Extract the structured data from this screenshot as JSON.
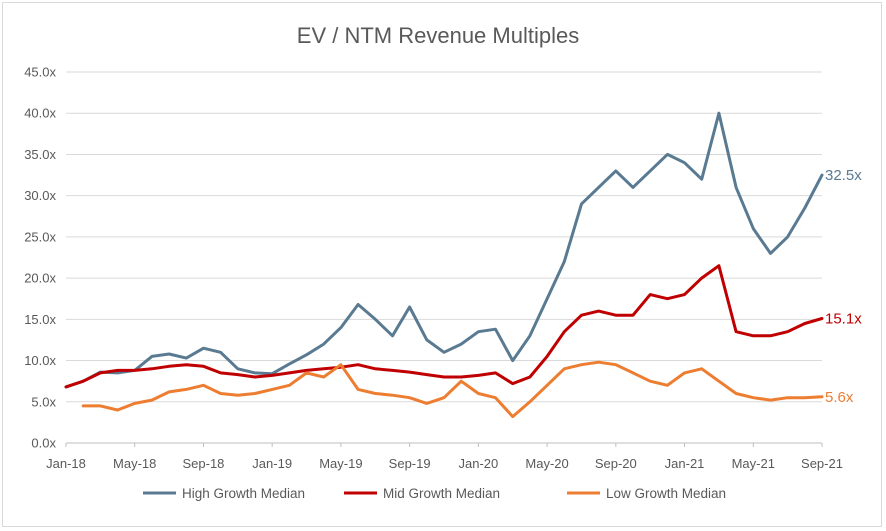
{
  "chart_data": {
    "type": "line",
    "title": "EV / NTM Revenue Multiples",
    "xlabel": "",
    "ylabel": "",
    "ylim": [
      0,
      45
    ],
    "y_ticks": [
      "0.0x",
      "5.0x",
      "10.0x",
      "15.0x",
      "20.0x",
      "25.0x",
      "30.0x",
      "35.0x",
      "40.0x",
      "45.0x"
    ],
    "x_ticks": [
      "Jan-18",
      "May-18",
      "Sep-18",
      "Jan-19",
      "May-19",
      "Sep-19",
      "Jan-20",
      "May-20",
      "Sep-20",
      "Jan-21",
      "May-21",
      "Sep-21"
    ],
    "grid": "horizontal",
    "legend_position": "bottom",
    "x": [
      "Jan-18",
      "Feb-18",
      "Mar-18",
      "Apr-18",
      "May-18",
      "Jun-18",
      "Jul-18",
      "Aug-18",
      "Sep-18",
      "Oct-18",
      "Nov-18",
      "Dec-18",
      "Jan-19",
      "Feb-19",
      "Mar-19",
      "Apr-19",
      "May-19",
      "Jun-19",
      "Jul-19",
      "Aug-19",
      "Sep-19",
      "Oct-19",
      "Nov-19",
      "Dec-19",
      "Jan-20",
      "Feb-20",
      "Mar-20",
      "Apr-20",
      "May-20",
      "Jun-20",
      "Jul-20",
      "Aug-20",
      "Sep-20",
      "Oct-20",
      "Nov-20",
      "Dec-20",
      "Jan-21",
      "Feb-21",
      "Mar-21",
      "Apr-21",
      "May-21",
      "Jun-21",
      "Jul-21",
      "Aug-21",
      "Sep-21"
    ],
    "series": [
      {
        "name": "High Growth Median",
        "color": "#5a7a92",
        "end_label": "32.5x",
        "values": [
          6.8,
          7.5,
          8.6,
          8.5,
          8.8,
          10.5,
          10.8,
          10.3,
          11.5,
          11.0,
          9.0,
          8.5,
          8.4,
          9.6,
          10.7,
          12.0,
          14.0,
          16.8,
          15.0,
          13.0,
          16.5,
          12.5,
          11.0,
          12.0,
          13.5,
          13.8,
          10.0,
          13.0,
          17.5,
          22.0,
          29.0,
          31.0,
          33.0,
          31.0,
          33.0,
          35.0,
          34.0,
          32.0,
          40.0,
          31.0,
          26.0,
          23.0,
          25.0,
          28.5,
          32.5
        ]
      },
      {
        "name": "Mid Growth Median",
        "color": "#c00000",
        "end_label": "15.1x",
        "values": [
          6.8,
          7.5,
          8.5,
          8.8,
          8.8,
          9.0,
          9.3,
          9.5,
          9.3,
          8.5,
          8.3,
          8.0,
          8.2,
          8.5,
          8.8,
          9.0,
          9.2,
          9.5,
          9.0,
          8.8,
          8.6,
          8.3,
          8.0,
          8.0,
          8.2,
          8.5,
          7.2,
          8.0,
          10.5,
          13.5,
          15.5,
          16.0,
          15.5,
          15.5,
          18.0,
          17.5,
          18.0,
          20.0,
          21.5,
          13.5,
          13.0,
          13.0,
          13.5,
          14.5,
          15.1
        ]
      },
      {
        "name": "Low Growth Median",
        "color": "#ed7d31",
        "end_label": "5.6x",
        "values": [
          null,
          4.5,
          4.5,
          4.0,
          4.8,
          5.2,
          6.2,
          6.5,
          7.0,
          6.0,
          5.8,
          6.0,
          6.5,
          7.0,
          8.5,
          8.0,
          9.5,
          6.5,
          6.0,
          5.8,
          5.5,
          4.8,
          5.5,
          7.5,
          6.0,
          5.5,
          3.2,
          5.0,
          7.0,
          9.0,
          9.5,
          9.8,
          9.5,
          8.5,
          7.5,
          7.0,
          8.5,
          9.0,
          7.5,
          6.0,
          5.5,
          5.2,
          5.5,
          5.5,
          5.6
        ]
      }
    ]
  }
}
